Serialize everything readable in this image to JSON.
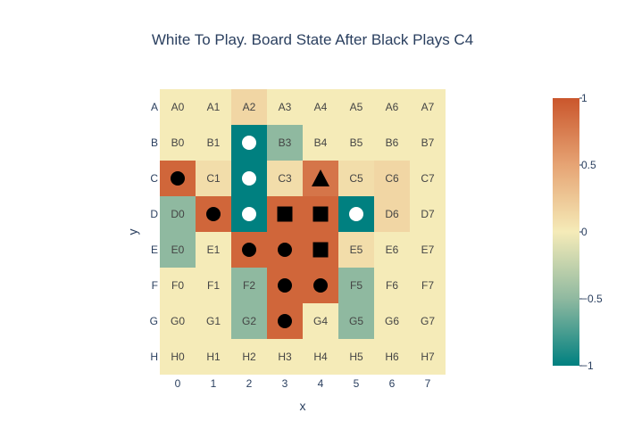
{
  "chart_data": {
    "type": "heatmap",
    "title": "White To Play. Board State After Black Plays C4",
    "xlabel": "x",
    "ylabel": "y",
    "x_categories": [
      "0",
      "1",
      "2",
      "3",
      "4",
      "5",
      "6",
      "7"
    ],
    "y_categories": [
      "A",
      "B",
      "C",
      "D",
      "E",
      "F",
      "G",
      "H"
    ],
    "z": [
      [
        0,
        0,
        0.15,
        0,
        0,
        0,
        0,
        0
      ],
      [
        0,
        0,
        -1,
        -0.5,
        0,
        0,
        0,
        0
      ],
      [
        0.9,
        0.1,
        -1,
        0.1,
        0.8,
        0.1,
        0.15,
        0
      ],
      [
        -0.5,
        0.9,
        -1,
        0.9,
        0.9,
        -1,
        0.15,
        0
      ],
      [
        -0.5,
        0,
        0.9,
        0.9,
        0.9,
        0.1,
        0,
        0
      ],
      [
        0,
        0,
        -0.5,
        0.9,
        0.9,
        -0.5,
        0,
        0
      ],
      [
        0,
        0,
        -0.5,
        0.9,
        0,
        -0.5,
        0,
        0
      ],
      [
        0,
        0,
        0,
        0,
        0,
        0,
        0,
        0
      ]
    ],
    "cell_labels": [
      [
        "A0",
        "A1",
        "A2",
        "A3",
        "A4",
        "A5",
        "A6",
        "A7"
      ],
      [
        "B0",
        "B1",
        "",
        "B3",
        "B4",
        "B5",
        "B6",
        "B7"
      ],
      [
        "",
        "C1",
        "",
        "C3",
        "",
        "C5",
        "C6",
        "C7"
      ],
      [
        "D0",
        "",
        "",
        "",
        "",
        "",
        "D6",
        "D7"
      ],
      [
        "E0",
        "E1",
        "",
        "",
        "",
        "E5",
        "E6",
        "E7"
      ],
      [
        "F0",
        "F1",
        "F2",
        "",
        "",
        "F5",
        "F6",
        "F7"
      ],
      [
        "G0",
        "G1",
        "G2",
        "",
        "G4",
        "G5",
        "G6",
        "G7"
      ],
      [
        "H0",
        "H1",
        "H2",
        "H3",
        "H4",
        "H5",
        "H6",
        "H7"
      ]
    ],
    "markers": [
      {
        "cell": "B2",
        "shape": "circle",
        "color": "white"
      },
      {
        "cell": "C0",
        "shape": "circle",
        "color": "black"
      },
      {
        "cell": "C2",
        "shape": "circle",
        "color": "white"
      },
      {
        "cell": "C4",
        "shape": "triangle",
        "color": "black"
      },
      {
        "cell": "D1",
        "shape": "circle",
        "color": "black"
      },
      {
        "cell": "D2",
        "shape": "circle",
        "color": "white"
      },
      {
        "cell": "D3",
        "shape": "square",
        "color": "black"
      },
      {
        "cell": "D4",
        "shape": "square",
        "color": "black"
      },
      {
        "cell": "D5",
        "shape": "circle",
        "color": "white"
      },
      {
        "cell": "E2",
        "shape": "circle",
        "color": "black"
      },
      {
        "cell": "E3",
        "shape": "circle",
        "color": "black"
      },
      {
        "cell": "E4",
        "shape": "square",
        "color": "black"
      },
      {
        "cell": "F3",
        "shape": "circle",
        "color": "black"
      },
      {
        "cell": "F4",
        "shape": "circle",
        "color": "black"
      },
      {
        "cell": "G3",
        "shape": "circle",
        "color": "black"
      }
    ],
    "zmin": -1,
    "zmax": 1,
    "colorscale": [
      [
        0,
        "#008080"
      ],
      [
        0.25,
        "#8fb9a0"
      ],
      [
        0.5,
        "#f5ebb8"
      ],
      [
        0.75,
        "#e6a474"
      ],
      [
        1,
        "#ca562c"
      ]
    ],
    "colorbar_ticks": [
      {
        "value": 1,
        "label": "1"
      },
      {
        "value": 0.5,
        "label": "0.5"
      },
      {
        "value": 0,
        "label": "0"
      },
      {
        "value": -0.5,
        "label": "−0.5"
      },
      {
        "value": -1,
        "label": "−1"
      }
    ]
  }
}
